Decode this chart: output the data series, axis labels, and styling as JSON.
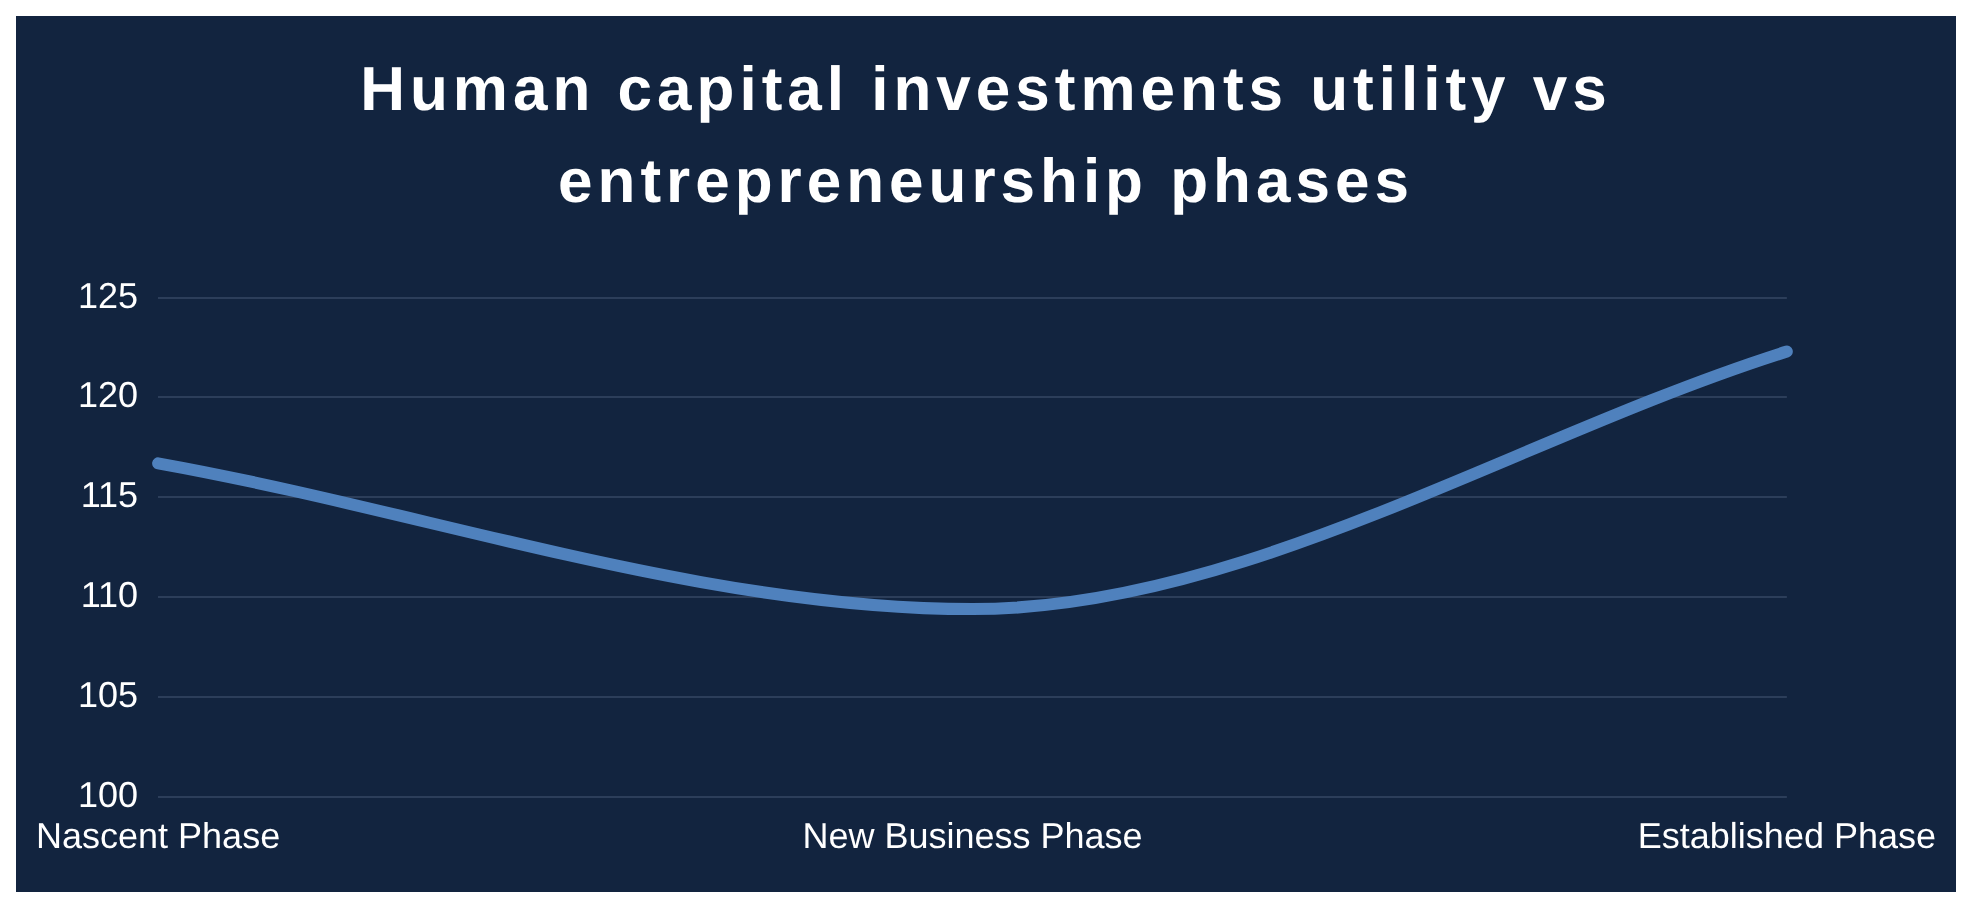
{
  "chart_data": {
    "type": "line",
    "title": "Human capital investments utility vs entrepreneurship phases",
    "categories": [
      "Nascent Phase",
      "New Business Phase",
      "Established Phase"
    ],
    "series": [
      {
        "color": "#4f81bd",
        "values": [
          116.7,
          109.4,
          122.3
        ]
      }
    ],
    "ylim": [
      100,
      125
    ],
    "yticks": [
      100,
      105,
      110,
      115,
      120,
      125
    ],
    "grid": "y",
    "legend": false,
    "marker": "none",
    "line_style": "solid"
  }
}
